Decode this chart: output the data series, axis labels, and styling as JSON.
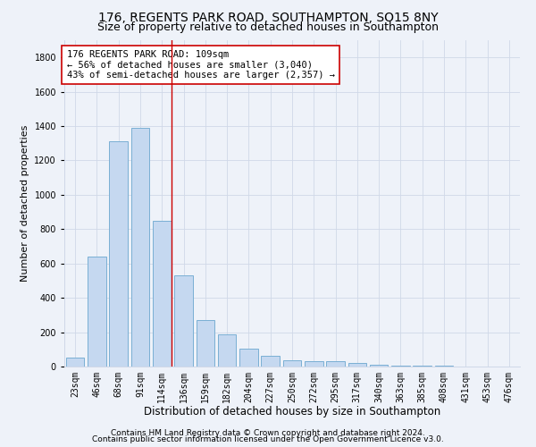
{
  "title": "176, REGENTS PARK ROAD, SOUTHAMPTON, SO15 8NY",
  "subtitle": "Size of property relative to detached houses in Southampton",
  "xlabel": "Distribution of detached houses by size in Southampton",
  "ylabel": "Number of detached properties",
  "categories": [
    "23sqm",
    "46sqm",
    "68sqm",
    "91sqm",
    "114sqm",
    "136sqm",
    "159sqm",
    "182sqm",
    "204sqm",
    "227sqm",
    "250sqm",
    "272sqm",
    "295sqm",
    "317sqm",
    "340sqm",
    "363sqm",
    "385sqm",
    "408sqm",
    "431sqm",
    "453sqm",
    "476sqm"
  ],
  "values": [
    50,
    640,
    1310,
    1390,
    850,
    530,
    270,
    185,
    105,
    65,
    35,
    30,
    30,
    20,
    10,
    5,
    5,
    3,
    2,
    1,
    1
  ],
  "bar_color": "#c5d8f0",
  "bar_edge_color": "#7aafd4",
  "grid_color": "#d0d8e8",
  "bg_color": "#eef2f9",
  "vline_color": "#cc0000",
  "vline_x_index": 4,
  "annotation_text": "176 REGENTS PARK ROAD: 109sqm\n← 56% of detached houses are smaller (3,040)\n43% of semi-detached houses are larger (2,357) →",
  "annotation_box_facecolor": "#ffffff",
  "annotation_box_edgecolor": "#cc0000",
  "ylim": [
    0,
    1900
  ],
  "yticks": [
    0,
    200,
    400,
    600,
    800,
    1000,
    1200,
    1400,
    1600,
    1800
  ],
  "footer1": "Contains HM Land Registry data © Crown copyright and database right 2024.",
  "footer2": "Contains public sector information licensed under the Open Government Licence v3.0.",
  "title_fontsize": 10,
  "subtitle_fontsize": 9,
  "xlabel_fontsize": 8.5,
  "ylabel_fontsize": 8,
  "tick_fontsize": 7,
  "annotation_fontsize": 7.5,
  "footer_fontsize": 6.5
}
